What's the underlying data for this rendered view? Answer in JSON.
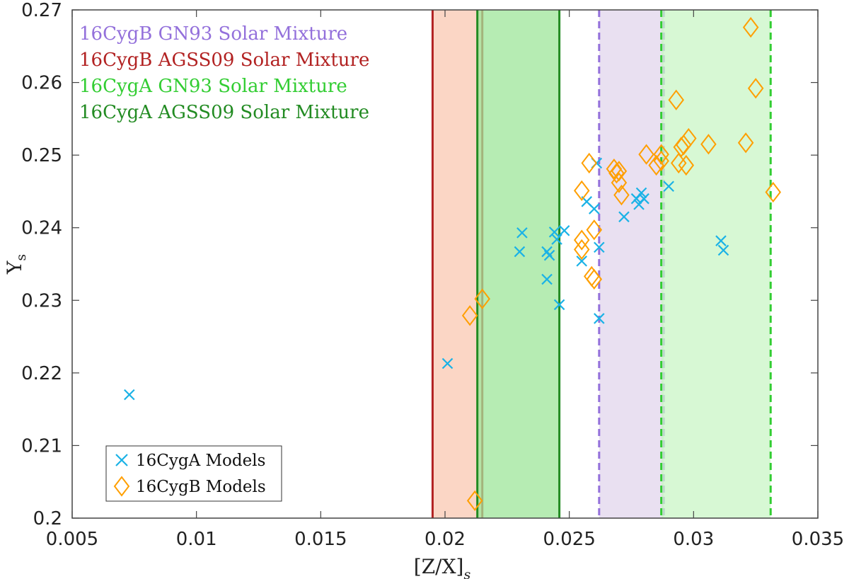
{
  "chart_data": {
    "type": "scatter",
    "xlabel": "[Z/X]",
    "xlabel_sub": "s",
    "ylabel": "Y",
    "ylabel_sub": "s",
    "xlim": [
      0.005,
      0.035
    ],
    "ylim": [
      0.2,
      0.27
    ],
    "xticks": [
      "0.005",
      "0.01",
      "0.015",
      "0.02",
      "0.025",
      "0.03",
      "0.035"
    ],
    "yticks": [
      "0.2",
      "0.21",
      "0.22",
      "0.23",
      "0.24",
      "0.25",
      "0.26",
      "0.27"
    ],
    "bands": [
      {
        "name": "16CygB AGSS09 Solar Mixture",
        "x0": 0.0195,
        "x1": 0.0215,
        "fill": "#f9c8b2",
        "edge": "#b22222",
        "style": "solid"
      },
      {
        "name": "16CygA AGSS09 Solar Mixture",
        "x0": 0.0213,
        "x1": 0.0246,
        "fill": "#9ee59a",
        "edge": "#228b22",
        "style": "solid"
      },
      {
        "name": "16CygB GN93 Solar Mixture",
        "x0": 0.0262,
        "x1": 0.0288,
        "fill": "#e2d6ec",
        "edge": "#9370db",
        "style": "dashed"
      },
      {
        "name": "16CygA GN93 Solar Mixture",
        "x0": 0.0287,
        "x1": 0.0331,
        "fill": "#c9f5c5",
        "edge": "#32cd32",
        "style": "dashed"
      }
    ],
    "band_labels": [
      {
        "text": "16CygB GN93 Solar Mixture",
        "color": "#9370db"
      },
      {
        "text": "16CygB AGSS09 Solar Mixture",
        "color": "#b22222"
      },
      {
        "text": "16CygA GN93 Solar Mixture",
        "color": "#32cd32"
      },
      {
        "text": "16CygA AGSS09 Solar Mixture",
        "color": "#228b22"
      }
    ],
    "series": [
      {
        "name": "16CygA Models",
        "marker": "x",
        "color": "#1ab2e6",
        "points": [
          [
            0.0073,
            0.217
          ],
          [
            0.0201,
            0.2213
          ],
          [
            0.023,
            0.2367
          ],
          [
            0.0231,
            0.2393
          ],
          [
            0.0241,
            0.2367
          ],
          [
            0.0241,
            0.2329
          ],
          [
            0.0242,
            0.2362
          ],
          [
            0.0244,
            0.2394
          ],
          [
            0.0245,
            0.2384
          ],
          [
            0.0246,
            0.2294
          ],
          [
            0.0248,
            0.2396
          ],
          [
            0.0255,
            0.2354
          ],
          [
            0.0257,
            0.2436
          ],
          [
            0.026,
            0.2426
          ],
          [
            0.0261,
            0.2489
          ],
          [
            0.0262,
            0.2373
          ],
          [
            0.0262,
            0.2275
          ],
          [
            0.0272,
            0.2415
          ],
          [
            0.0277,
            0.244
          ],
          [
            0.0278,
            0.2432
          ],
          [
            0.0279,
            0.2448
          ],
          [
            0.028,
            0.244
          ],
          [
            0.029,
            0.2457
          ],
          [
            0.0311,
            0.2382
          ],
          [
            0.0312,
            0.2369
          ]
        ]
      },
      {
        "name": "16CygB Models",
        "marker": "diamond",
        "color": "#ff9f00",
        "points": [
          [
            0.021,
            0.2279
          ],
          [
            0.0212,
            0.2024
          ],
          [
            0.0215,
            0.2302
          ],
          [
            0.0255,
            0.2451
          ],
          [
            0.0255,
            0.2383
          ],
          [
            0.0255,
            0.237
          ],
          [
            0.0258,
            0.2489
          ],
          [
            0.0259,
            0.2333
          ],
          [
            0.026,
            0.2329
          ],
          [
            0.026,
            0.2397
          ],
          [
            0.0268,
            0.2481
          ],
          [
            0.0269,
            0.2475
          ],
          [
            0.027,
            0.2478
          ],
          [
            0.027,
            0.2462
          ],
          [
            0.0271,
            0.2445
          ],
          [
            0.0281,
            0.2501
          ],
          [
            0.0285,
            0.2486
          ],
          [
            0.0287,
            0.2492
          ],
          [
            0.0287,
            0.2501
          ],
          [
            0.0293,
            0.2576
          ],
          [
            0.0294,
            0.2489
          ],
          [
            0.0295,
            0.2511
          ],
          [
            0.0296,
            0.2514
          ],
          [
            0.0297,
            0.2486
          ],
          [
            0.0298,
            0.2523
          ],
          [
            0.0306,
            0.2515
          ],
          [
            0.0321,
            0.2517
          ],
          [
            0.0323,
            0.2676
          ],
          [
            0.0325,
            0.2592
          ],
          [
            0.0332,
            0.2449
          ]
        ]
      }
    ],
    "legend": {
      "position": "bottom-left",
      "entries": [
        "16CygA Models",
        "16CygB Models"
      ]
    }
  }
}
